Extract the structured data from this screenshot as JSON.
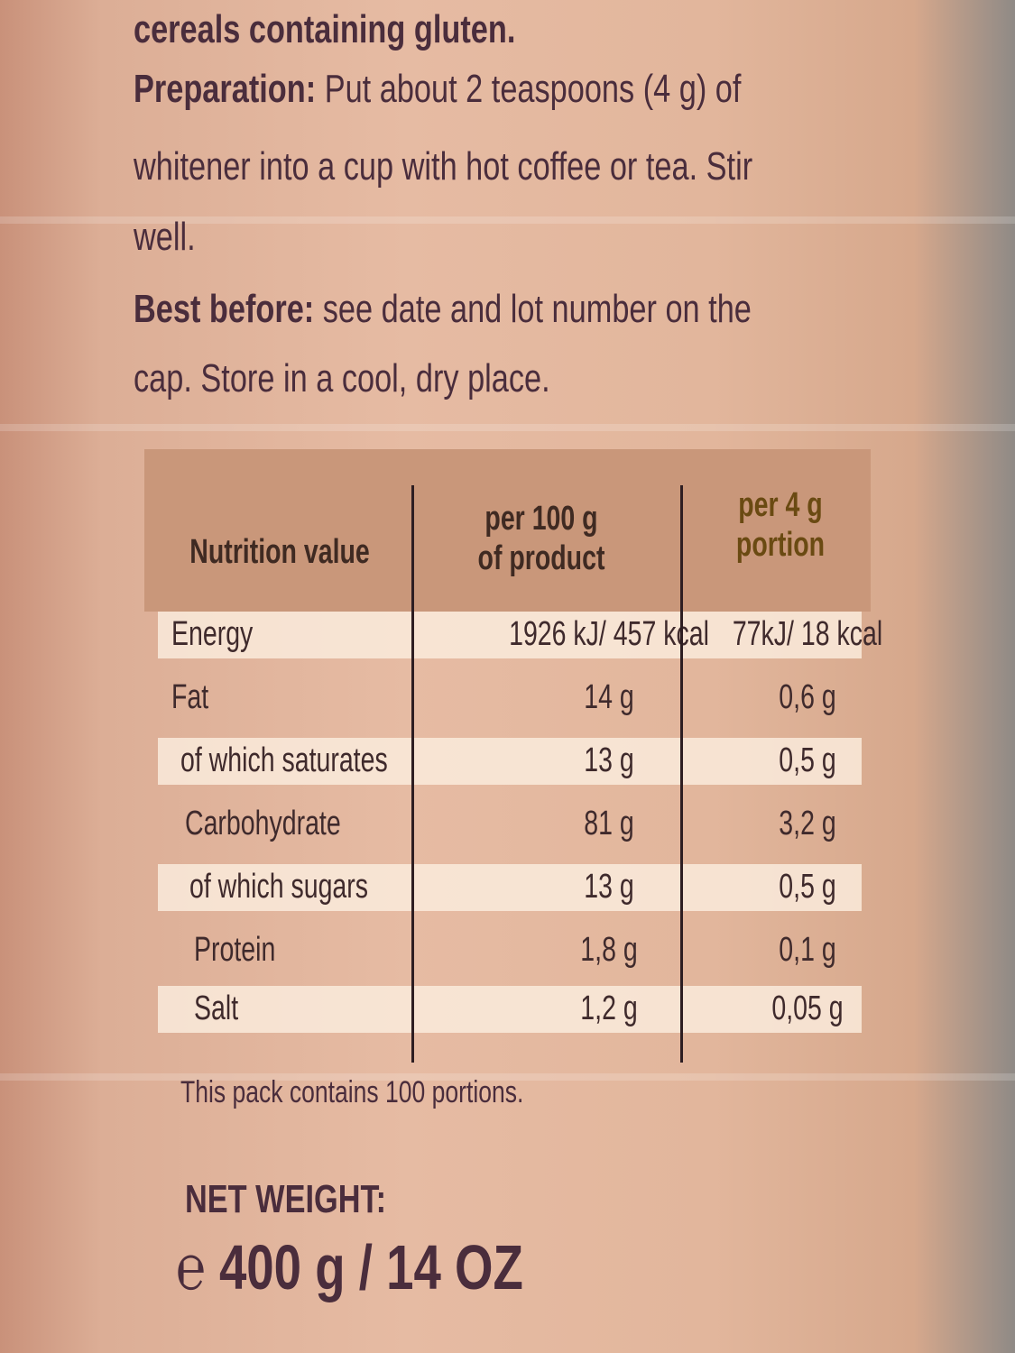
{
  "intro": {
    "line1": "cereals containing gluten.",
    "prep_label": "Preparation:",
    "prep_text1": " Put about 2 teaspoons (4 g) of",
    "prep_text2": "whitener into a cup with hot coffee or tea. Stir",
    "prep_text3": "well.",
    "best_label": "Best before:",
    "best_text1": " see date and lot number on the",
    "best_text2": "cap. Store in a cool, dry place."
  },
  "nutrition": {
    "headers": [
      "Nutrition value",
      "per 100 g",
      "of product",
      "per 4 g",
      "portion"
    ],
    "rows": [
      {
        "name": "Energy",
        "per100": "1926 kJ/ 457 kcal",
        "per4": "77kJ/ 18 kcal"
      },
      {
        "name": "Fat",
        "per100": "14 g",
        "per4": "0,6 g"
      },
      {
        "name": "of which saturates",
        "per100": "13 g",
        "per4": "0,5 g"
      },
      {
        "name": "Carbohydrate",
        "per100": "81 g",
        "per4": "3,2 g"
      },
      {
        "name": "of which sugars",
        "per100": "13 g",
        "per4": "0,5 g"
      },
      {
        "name": "Protein",
        "per100": "1,8 g",
        "per4": "0,1 g"
      },
      {
        "name": "Salt",
        "per100": "1,2 g",
        "per4": "0,05 g"
      }
    ],
    "footnote": "This pack contains 100 portions."
  },
  "net_weight": {
    "label": "NET WEIGHT:",
    "estimated_sign": "℮",
    "value": "400 g / 14 OZ"
  }
}
